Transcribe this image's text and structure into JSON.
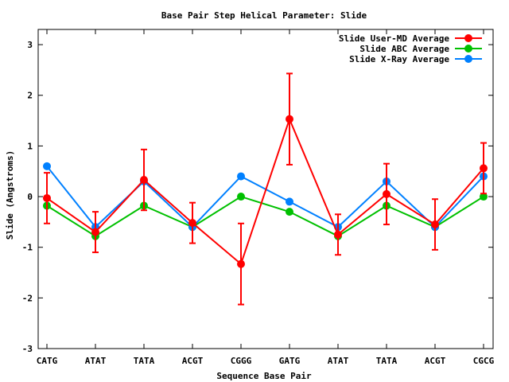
{
  "chart_data": {
    "type": "line",
    "title": "Base Pair Step Helical Parameter: Slide",
    "xlabel": "Sequence Base Pair",
    "ylabel": "Slide (Angstroms)",
    "categories": [
      "CATG",
      "ATAT",
      "TATA",
      "ACGT",
      "CGGG",
      "GATG",
      "ATAT",
      "TATA",
      "ACGT",
      "CGCG"
    ],
    "ylim": [
      -3.0,
      3.3
    ],
    "yticks": [
      -3,
      -2,
      -1,
      0,
      1,
      2,
      3
    ],
    "ytick_labels": [
      "-3",
      "-2",
      "-1",
      "0",
      "1",
      "2",
      "3"
    ],
    "legend_position": "top-right",
    "grid": false,
    "series": [
      {
        "name": "Slide User-MD Average",
        "color": "#ff0000",
        "values": [
          -0.03,
          -0.7,
          0.33,
          -0.52,
          -1.33,
          1.53,
          -0.75,
          0.05,
          -0.55,
          0.56
        ],
        "error": [
          0.5,
          0.4,
          0.6,
          0.4,
          0.8,
          0.9,
          0.4,
          0.6,
          0.5,
          0.5
        ]
      },
      {
        "name": "Slide ABC Average",
        "color": "#00c000",
        "values": [
          -0.18,
          -0.78,
          -0.18,
          -0.6,
          0.0,
          -0.3,
          -0.78,
          -0.18,
          -0.6,
          0.0
        ]
      },
      {
        "name": "Slide X-Ray Average",
        "color": "#0080ff",
        "values": [
          0.6,
          -0.6,
          0.3,
          -0.6,
          0.4,
          -0.1,
          -0.6,
          0.3,
          -0.6,
          0.4
        ]
      }
    ]
  }
}
